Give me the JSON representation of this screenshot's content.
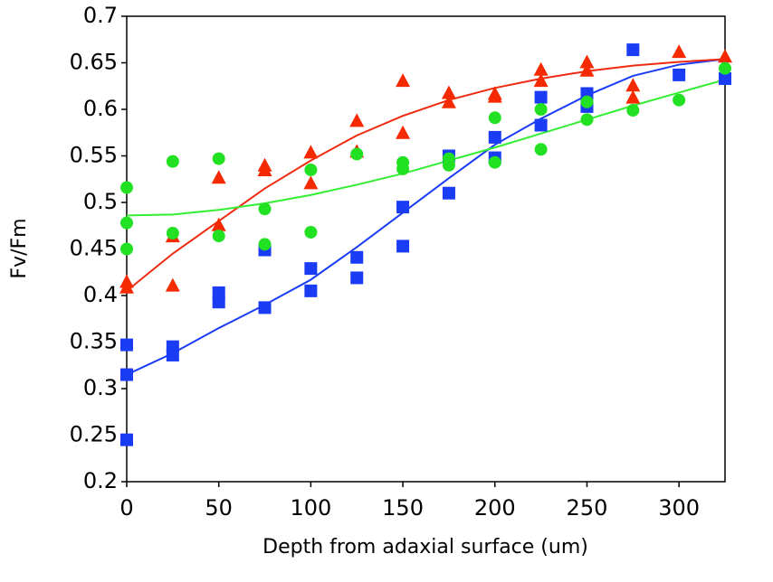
{
  "chart_data": {
    "type": "scatter",
    "x_label": "Depth from adaxial surface (um)",
    "y_label": "Fv/Fm",
    "xlim": [
      0,
      325
    ],
    "xticks": [
      0,
      50,
      100,
      150,
      200,
      250,
      300
    ],
    "ylim": [
      0.2,
      0.7
    ],
    "yticks": [
      0.2,
      0.25,
      0.3,
      0.35,
      0.4,
      0.45,
      0.5,
      0.55,
      0.6,
      0.65,
      0.7
    ],
    "series": [
      {
        "marker": "square",
        "color": "#1a3cf5",
        "x": [
          0,
          0,
          0,
          25,
          25,
          50,
          50,
          75,
          75,
          100,
          100,
          125,
          125,
          150,
          150,
          175,
          175,
          200,
          200,
          225,
          225,
          250,
          250,
          275,
          300,
          325
        ],
        "values": [
          0.347,
          0.315,
          0.245,
          0.345,
          0.336,
          0.403,
          0.393,
          0.449,
          0.387,
          0.429,
          0.405,
          0.441,
          0.419,
          0.495,
          0.453,
          0.55,
          0.51,
          0.57,
          0.548,
          0.613,
          0.583,
          0.617,
          0.603,
          0.664,
          0.637,
          0.633
        ]
      },
      {
        "marker": "triangle",
        "color": "#f52a00",
        "x": [
          0,
          0,
          25,
          25,
          50,
          50,
          75,
          75,
          100,
          100,
          125,
          125,
          150,
          150,
          175,
          175,
          200,
          200,
          225,
          225,
          250,
          250,
          275,
          275,
          300,
          325
        ],
        "values": [
          0.415,
          0.409,
          0.464,
          0.411,
          0.527,
          0.476,
          0.54,
          0.535,
          0.554,
          0.521,
          0.588,
          0.555,
          0.631,
          0.575,
          0.618,
          0.608,
          0.617,
          0.614,
          0.643,
          0.631,
          0.651,
          0.642,
          0.626,
          0.613,
          0.662,
          0.657
        ]
      },
      {
        "marker": "circle",
        "color": "#22e022",
        "x": [
          0,
          0,
          0,
          25,
          25,
          50,
          50,
          75,
          75,
          100,
          100,
          125,
          150,
          150,
          175,
          175,
          200,
          200,
          225,
          225,
          250,
          250,
          275,
          300,
          325
        ],
        "values": [
          0.516,
          0.478,
          0.45,
          0.544,
          0.467,
          0.547,
          0.464,
          0.493,
          0.455,
          0.535,
          0.468,
          0.552,
          0.543,
          0.536,
          0.547,
          0.54,
          0.591,
          0.543,
          0.6,
          0.557,
          0.608,
          0.589,
          0.599,
          0.61,
          0.644
        ]
      },
      {
        "marker": "none",
        "color": "#1a3cf5",
        "x": [
          0,
          25,
          50,
          75,
          100,
          125,
          150,
          175,
          200,
          225,
          250,
          275,
          300,
          325
        ],
        "values": [
          0.315,
          0.338,
          0.365,
          0.39,
          0.417,
          0.452,
          0.489,
          0.526,
          0.562,
          0.59,
          0.615,
          0.636,
          0.648,
          0.654
        ]
      },
      {
        "marker": "none",
        "color": "#f02a10",
        "x": [
          0,
          25,
          50,
          75,
          100,
          125,
          150,
          175,
          200,
          225,
          250,
          275,
          300,
          325
        ],
        "values": [
          0.405,
          0.445,
          0.48,
          0.515,
          0.545,
          0.572,
          0.593,
          0.61,
          0.623,
          0.633,
          0.641,
          0.647,
          0.651,
          0.654
        ]
      },
      {
        "marker": "none",
        "color": "#33ee33",
        "x": [
          0,
          25,
          50,
          75,
          100,
          125,
          150,
          175,
          200,
          225,
          250,
          275,
          300,
          325
        ],
        "values": [
          0.486,
          0.487,
          0.492,
          0.499,
          0.508,
          0.519,
          0.531,
          0.545,
          0.559,
          0.574,
          0.589,
          0.604,
          0.618,
          0.632
        ]
      }
    ]
  }
}
